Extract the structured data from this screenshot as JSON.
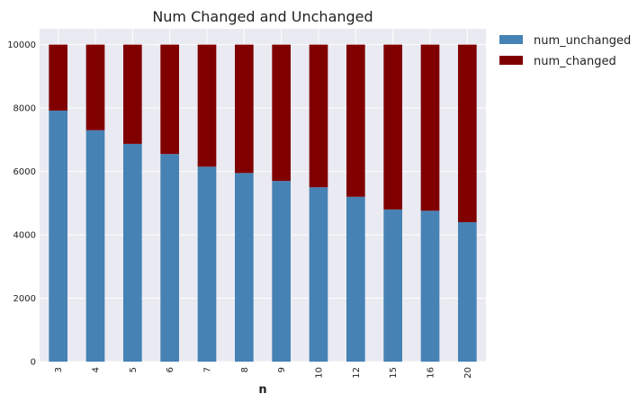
{
  "chart_data": {
    "type": "bar",
    "stacked": true,
    "title": "Num Changed and Unchanged",
    "xlabel": "n",
    "ylabel": "",
    "categories": [
      "3",
      "4",
      "5",
      "6",
      "7",
      "8",
      "9",
      "10",
      "12",
      "15",
      "16",
      "20"
    ],
    "series": [
      {
        "name": "num_unchanged",
        "color": "#4682b4",
        "values": [
          7920,
          7300,
          6870,
          6550,
          6150,
          5950,
          5700,
          5500,
          5200,
          4800,
          4760,
          4400
        ]
      },
      {
        "name": "num_changed",
        "color": "#800000",
        "values": [
          2080,
          2700,
          3130,
          3450,
          3850,
          4050,
          4300,
          4500,
          4800,
          5200,
          5240,
          5600
        ]
      }
    ],
    "ylim": [
      0,
      10500
    ],
    "yticks": [
      0,
      2000,
      4000,
      6000,
      8000,
      10000
    ],
    "grid": true,
    "legend": "outside-right"
  }
}
